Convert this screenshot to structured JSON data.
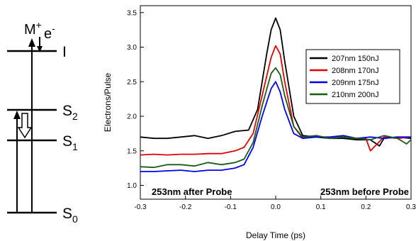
{
  "energy_diagram": {
    "levels": [
      {
        "name": "ionization",
        "label": "I"
      },
      {
        "name": "s2",
        "label": "S",
        "sub": "2"
      },
      {
        "name": "s1",
        "label": "S",
        "sub": "1"
      },
      {
        "name": "s0",
        "label": "S",
        "sub": "0"
      }
    ],
    "ion_label": {
      "base": "M",
      "sup": "+"
    },
    "electron_label": {
      "base": "e",
      "sup": "-"
    }
  },
  "chart_data": {
    "type": "line",
    "title": "",
    "xlabel": "Delay Time (ps)",
    "ylabel": "Electrons/Pulse",
    "xlim": [
      -0.3,
      0.3
    ],
    "ylim": [
      0.8,
      3.6
    ],
    "xticks": [
      "-0.3",
      "-0.2",
      "-0.1",
      "0.0",
      "0.1",
      "0.2",
      "0.3"
    ],
    "yticks": [
      "1.0",
      "1.5",
      "2.0",
      "2.5",
      "3.0",
      "3.5"
    ],
    "legend_position": "top-right",
    "annotations": [
      "253nm after Probe",
      "253nm before Probe"
    ],
    "series": [
      {
        "name": "207nm 150nJ",
        "color": "#000000",
        "x": [
          -0.3,
          -0.27,
          -0.24,
          -0.21,
          -0.18,
          -0.15,
          -0.12,
          -0.09,
          -0.06,
          -0.04,
          -0.02,
          -0.01,
          0.0,
          0.01,
          0.02,
          0.04,
          0.06,
          0.09,
          0.12,
          0.15,
          0.18,
          0.21,
          0.23,
          0.24,
          0.27,
          0.3
        ],
        "y": [
          1.7,
          1.68,
          1.68,
          1.7,
          1.72,
          1.68,
          1.72,
          1.78,
          1.8,
          2.1,
          2.9,
          3.25,
          3.42,
          3.25,
          2.8,
          2.0,
          1.72,
          1.7,
          1.68,
          1.68,
          1.66,
          1.66,
          1.57,
          1.68,
          1.7,
          1.68
        ]
      },
      {
        "name": "208nm 170nJ",
        "color": "#e00000",
        "x": [
          -0.3,
          -0.27,
          -0.24,
          -0.21,
          -0.18,
          -0.15,
          -0.12,
          -0.09,
          -0.07,
          -0.05,
          -0.03,
          -0.01,
          0.0,
          0.01,
          0.02,
          0.04,
          0.06,
          0.09,
          0.12,
          0.15,
          0.18,
          0.2,
          0.21,
          0.24,
          0.27,
          0.3
        ],
        "y": [
          1.44,
          1.45,
          1.44,
          1.45,
          1.45,
          1.46,
          1.46,
          1.5,
          1.55,
          1.75,
          2.3,
          2.85,
          3.02,
          2.9,
          2.5,
          1.85,
          1.68,
          1.72,
          1.68,
          1.7,
          1.68,
          1.68,
          1.5,
          1.7,
          1.68,
          1.7
        ]
      },
      {
        "name": "209nm 175nJ",
        "color": "#0000ee",
        "x": [
          -0.3,
          -0.27,
          -0.24,
          -0.21,
          -0.18,
          -0.15,
          -0.12,
          -0.09,
          -0.07,
          -0.05,
          -0.03,
          -0.01,
          0.0,
          0.01,
          0.02,
          0.04,
          0.06,
          0.09,
          0.12,
          0.15,
          0.18,
          0.21,
          0.24,
          0.27,
          0.3
        ],
        "y": [
          1.2,
          1.2,
          1.21,
          1.22,
          1.2,
          1.22,
          1.22,
          1.25,
          1.3,
          1.55,
          2.0,
          2.4,
          2.5,
          2.35,
          2.1,
          1.75,
          1.68,
          1.7,
          1.7,
          1.72,
          1.68,
          1.7,
          1.68,
          1.7,
          1.7
        ]
      },
      {
        "name": "210nm 200nJ",
        "color": "#1a5c1a",
        "x": [
          -0.3,
          -0.27,
          -0.24,
          -0.21,
          -0.18,
          -0.15,
          -0.12,
          -0.09,
          -0.07,
          -0.05,
          -0.03,
          -0.01,
          0.0,
          0.01,
          0.02,
          0.04,
          0.06,
          0.09,
          0.12,
          0.15,
          0.18,
          0.21,
          0.24,
          0.27,
          0.29,
          0.3
        ],
        "y": [
          1.27,
          1.26,
          1.3,
          1.3,
          1.28,
          1.33,
          1.3,
          1.33,
          1.38,
          1.62,
          2.15,
          2.62,
          2.7,
          2.6,
          2.3,
          1.85,
          1.7,
          1.72,
          1.68,
          1.7,
          1.68,
          1.66,
          1.72,
          1.68,
          1.6,
          1.66
        ]
      }
    ]
  }
}
